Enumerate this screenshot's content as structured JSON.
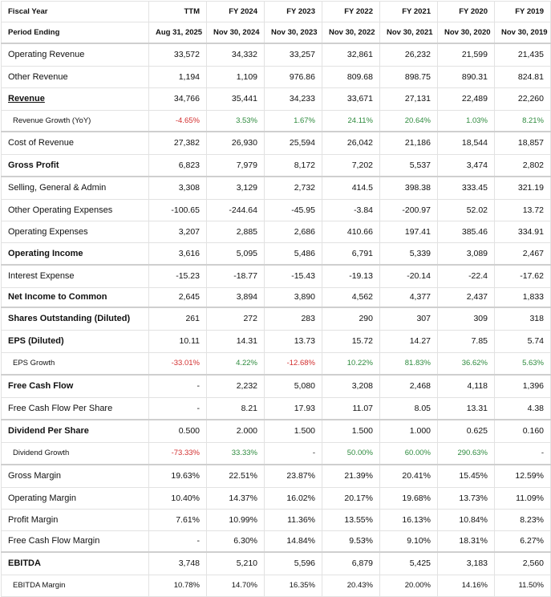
{
  "header": {
    "fiscal_year_label": "Fiscal Year",
    "period_ending_label": "Period Ending",
    "years": [
      "TTM",
      "FY 2024",
      "FY 2023",
      "FY 2022",
      "FY 2021",
      "FY 2020",
      "FY 2019"
    ],
    "periods": [
      "Aug 31, 2025",
      "Nov 30, 2024",
      "Nov 30, 2023",
      "Nov 30, 2022",
      "Nov 30, 2021",
      "Nov 30, 2020",
      "Nov 30, 2019"
    ]
  },
  "rows": [
    {
      "label": "Operating Revenue",
      "values": [
        "33,572",
        "34,332",
        "33,257",
        "32,861",
        "26,232",
        "21,599",
        "21,435"
      ]
    },
    {
      "label": "Other Revenue",
      "values": [
        "1,194",
        "1,109",
        "976.86",
        "809.68",
        "898.75",
        "890.31",
        "824.81"
      ]
    },
    {
      "label": "Revenue",
      "values": [
        "34,766",
        "35,441",
        "34,233",
        "33,671",
        "27,131",
        "22,489",
        "22,260"
      ]
    },
    {
      "label": "Revenue Growth (YoY)",
      "values": [
        "-4.65%",
        "3.53%",
        "1.67%",
        "24.11%",
        "20.64%",
        "1.03%",
        "8.21%"
      ]
    },
    {
      "label": "Cost of Revenue",
      "values": [
        "27,382",
        "26,930",
        "25,594",
        "26,042",
        "21,186",
        "18,544",
        "18,857"
      ]
    },
    {
      "label": "Gross Profit",
      "values": [
        "6,823",
        "7,979",
        "8,172",
        "7,202",
        "5,537",
        "3,474",
        "2,802"
      ]
    },
    {
      "label": "Selling, General & Admin",
      "values": [
        "3,308",
        "3,129",
        "2,732",
        "414.5",
        "398.38",
        "333.45",
        "321.19"
      ]
    },
    {
      "label": "Other Operating Expenses",
      "values": [
        "-100.65",
        "-244.64",
        "-45.95",
        "-3.84",
        "-200.97",
        "52.02",
        "13.72"
      ]
    },
    {
      "label": "Operating Expenses",
      "values": [
        "3,207",
        "2,885",
        "2,686",
        "410.66",
        "197.41",
        "385.46",
        "334.91"
      ]
    },
    {
      "label": "Operating Income",
      "values": [
        "3,616",
        "5,095",
        "5,486",
        "6,791",
        "5,339",
        "3,089",
        "2,467"
      ]
    },
    {
      "label": "Interest Expense",
      "values": [
        "-15.23",
        "-18.77",
        "-15.43",
        "-19.13",
        "-20.14",
        "-22.4",
        "-17.62"
      ]
    },
    {
      "label": "Net Income to Common",
      "values": [
        "2,645",
        "3,894",
        "3,890",
        "4,562",
        "4,377",
        "2,437",
        "1,833"
      ]
    },
    {
      "label": "Shares Outstanding (Diluted)",
      "values": [
        "261",
        "272",
        "283",
        "290",
        "307",
        "309",
        "318"
      ]
    },
    {
      "label": "EPS (Diluted)",
      "values": [
        "10.11",
        "14.31",
        "13.73",
        "15.72",
        "14.27",
        "7.85",
        "5.74"
      ]
    },
    {
      "label": "EPS Growth",
      "values": [
        "-33.01%",
        "4.22%",
        "-12.68%",
        "10.22%",
        "81.83%",
        "36.62%",
        "5.63%"
      ]
    },
    {
      "label": "Free Cash Flow",
      "values": [
        "-",
        "2,232",
        "5,080",
        "3,208",
        "2,468",
        "4,118",
        "1,396"
      ]
    },
    {
      "label": "Free Cash Flow Per Share",
      "values": [
        "-",
        "8.21",
        "17.93",
        "11.07",
        "8.05",
        "13.31",
        "4.38"
      ]
    },
    {
      "label": "Dividend Per Share",
      "values": [
        "0.500",
        "2.000",
        "1.500",
        "1.500",
        "1.000",
        "0.625",
        "0.160"
      ]
    },
    {
      "label": "Dividend Growth",
      "values": [
        "-73.33%",
        "33.33%",
        "-",
        "50.00%",
        "60.00%",
        "290.63%",
        "-"
      ]
    },
    {
      "label": "Gross Margin",
      "values": [
        "19.63%",
        "22.51%",
        "23.87%",
        "21.39%",
        "20.41%",
        "15.45%",
        "12.59%"
      ]
    },
    {
      "label": "Operating Margin",
      "values": [
        "10.40%",
        "14.37%",
        "16.02%",
        "20.17%",
        "19.68%",
        "13.73%",
        "11.09%"
      ]
    },
    {
      "label": "Profit Margin",
      "values": [
        "7.61%",
        "10.99%",
        "11.36%",
        "13.55%",
        "16.13%",
        "10.84%",
        "8.23%"
      ]
    },
    {
      "label": "Free Cash Flow Margin",
      "values": [
        "-",
        "6.30%",
        "14.84%",
        "9.53%",
        "9.10%",
        "18.31%",
        "6.27%"
      ]
    },
    {
      "label": "EBITDA",
      "values": [
        "3,748",
        "5,210",
        "5,596",
        "6,879",
        "5,425",
        "3,183",
        "2,560"
      ]
    },
    {
      "label": "EBITDA Margin",
      "values": [
        "10.78%",
        "14.70%",
        "16.35%",
        "20.43%",
        "20.00%",
        "14.16%",
        "11.50%"
      ]
    }
  ],
  "colors": {
    "negative": "#d32f2f",
    "positive": "#2e8b3e"
  }
}
